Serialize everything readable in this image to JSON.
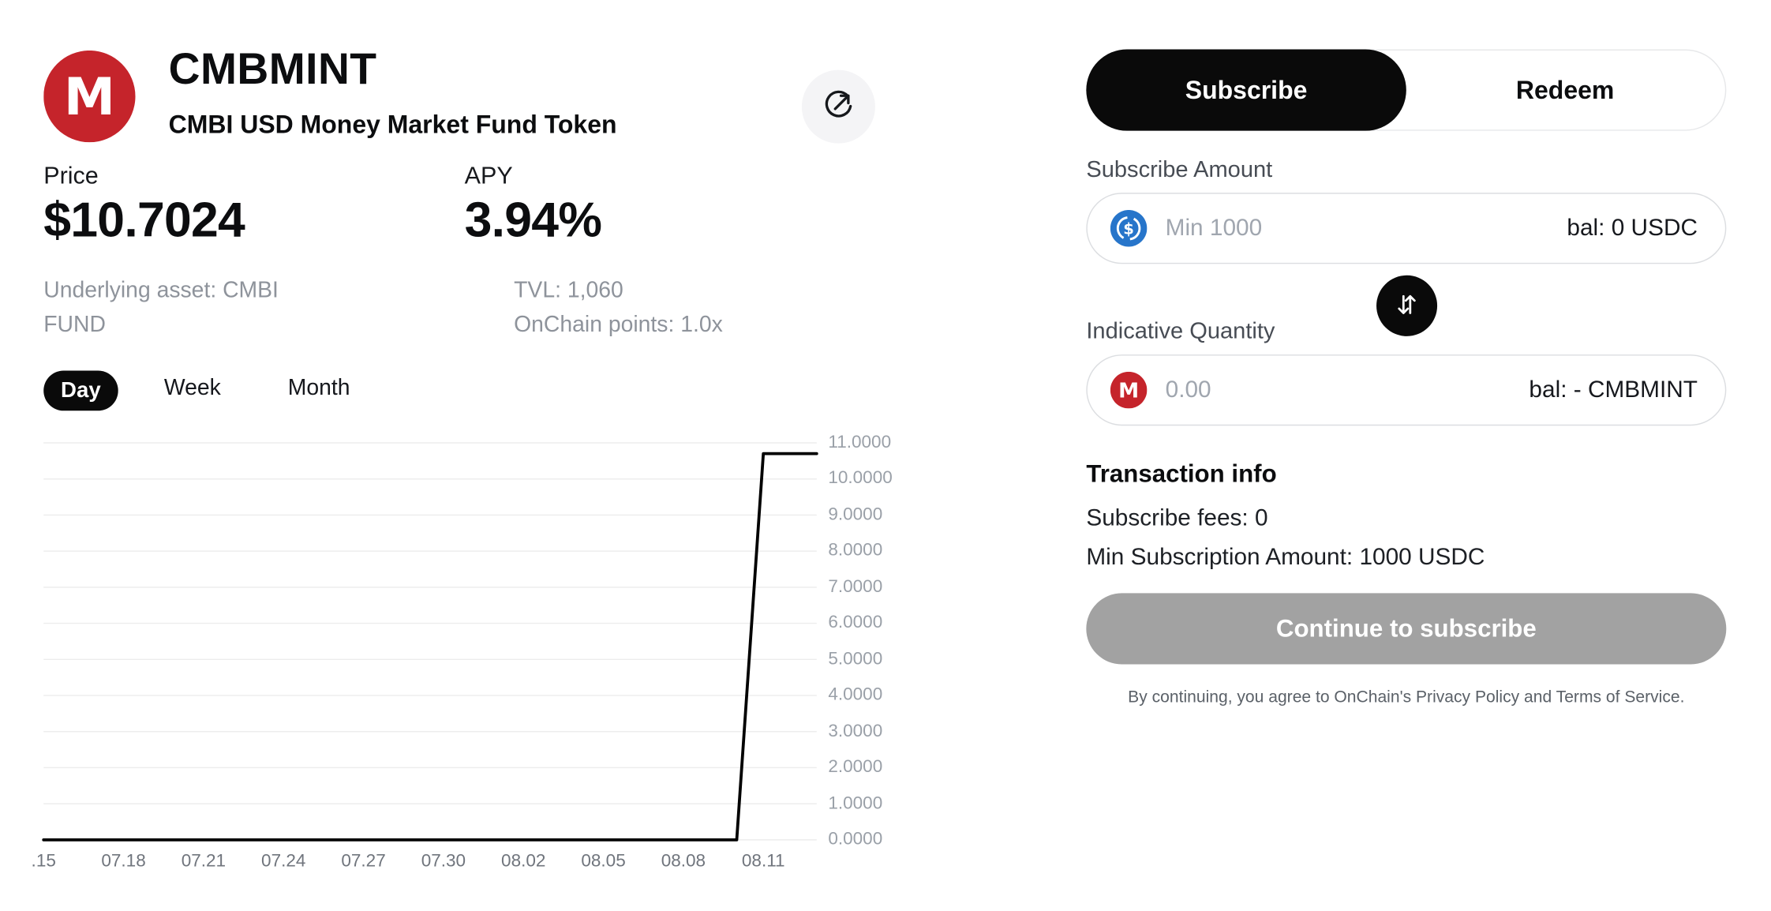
{
  "header": {
    "token_symbol": "CMBMINT",
    "token_name": "CMBI USD Money Market Fund Token"
  },
  "stats": {
    "price_label": "Price",
    "price_value": "$10.7024",
    "apy_label": "APY",
    "apy_value": "3.94%",
    "underlying_asset": "Underlying asset: CMBI FUND",
    "tvl": "TVL: 1,060",
    "onchain_points": "OnChain points: 1.0x"
  },
  "range_tabs": [
    {
      "label": "Day",
      "active": true
    },
    {
      "label": "Week",
      "active": false
    },
    {
      "label": "Month",
      "active": false
    }
  ],
  "chart_data": {
    "type": "line",
    "title": "CMBMINT token price history (Day view)",
    "x": [
      "07.15",
      "07.16",
      "07.17",
      "07.18",
      "07.19",
      "07.20",
      "07.21",
      "07.22",
      "07.23",
      "07.24",
      "07.25",
      "07.26",
      "07.27",
      "07.28",
      "07.29",
      "07.30",
      "07.31",
      "08.01",
      "08.02",
      "08.03",
      "08.04",
      "08.05",
      "08.06",
      "08.07",
      "08.08",
      "08.09",
      "08.10",
      "08.11",
      "08.12",
      "08.13"
    ],
    "values": [
      0,
      0,
      0,
      0,
      0,
      0,
      0,
      0,
      0,
      0,
      0,
      0,
      0,
      0,
      0,
      0,
      0,
      0,
      0,
      0,
      0,
      0,
      0,
      0,
      0,
      0,
      0,
      10.7024,
      10.7024,
      10.7024
    ],
    "x_tick_positions": [
      0,
      3,
      6,
      9,
      12,
      15,
      18,
      21,
      24,
      27
    ],
    "x_tick_labels": [
      ".15",
      "07.18",
      "07.21",
      "07.24",
      "07.27",
      "07.30",
      "08.02",
      "08.05",
      "08.08",
      "08.11"
    ],
    "y_tick_labels": [
      "11.0000",
      "10.0000",
      "9.0000",
      "8.0000",
      "7.0000",
      "6.0000",
      "5.0000",
      "4.0000",
      "3.0000",
      "2.0000",
      "1.0000",
      "0.0000"
    ],
    "ylim": [
      0,
      11
    ],
    "xlabel": "",
    "ylabel": "",
    "grid": true,
    "legend": "none",
    "line_color": "#000000"
  },
  "panel": {
    "tabs": [
      {
        "label": "Subscribe",
        "active": true
      },
      {
        "label": "Redeem",
        "active": false
      }
    ],
    "subscribe_amount": {
      "label": "Subscribe Amount",
      "placeholder": "Min 1000",
      "balance": "bal: 0 USDC"
    },
    "indicative_quantity": {
      "label": "Indicative Quantity",
      "placeholder": "0.00",
      "balance": "bal: - CMBMINT"
    },
    "transaction_info": {
      "title": "Transaction info",
      "rows": [
        "Subscribe fees: 0",
        "Min Subscription Amount: 1000 USDC"
      ]
    },
    "cta_label": "Continue to subscribe",
    "disclaimer": {
      "prefix": "By continuing, you agree to OnChain's ",
      "privacy_link": "Privacy Policy",
      "middle": " and ",
      "terms_link": "Terms of Service",
      "suffix": "."
    }
  },
  "colors": {
    "brand_red": "#c5242b",
    "usdc_blue": "#2775ca",
    "accent_black": "#0a0a0a",
    "cta_disabled_gray": "#a2a2a2"
  }
}
